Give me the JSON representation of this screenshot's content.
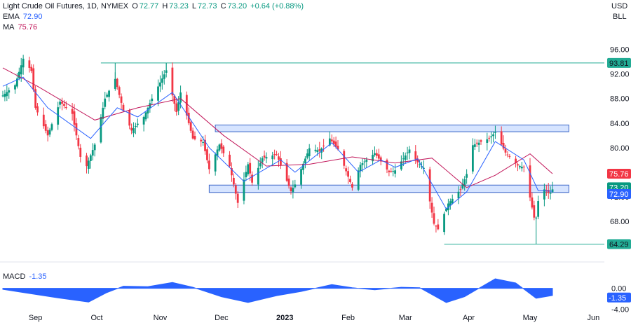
{
  "header": {
    "symbol": "Light Crude Oil Futures, 1D, NYMEX",
    "open_label": "O",
    "open": "72.77",
    "high_label": "H",
    "high": "73.23",
    "low_label": "L",
    "low": "72.73",
    "close_label": "C",
    "close": "73.20",
    "change": "+0.64 (+0.88%)",
    "ema_label": "EMA",
    "ema_value": "72.90",
    "ma_label": "MA",
    "ma_value": "75.76",
    "currency": "USD",
    "unit": "BLL"
  },
  "macd": {
    "label": "MACD",
    "value": "-1.35"
  },
  "colors": {
    "up": "#089981",
    "down": "#f23645",
    "ema": "#2962ff",
    "ma": "#c2185b",
    "level_line": "#22ab94",
    "zone_fill": "#d6e4ff",
    "zone_border": "#3b66c8",
    "macd_fill": "#2962ff",
    "axis_text": "#131722"
  },
  "chart_data": [
    {
      "type": "candlestick",
      "title": "Light Crude Oil Futures, 1D, NYMEX",
      "y_axis_ticks": [
        "96.00",
        "92.00",
        "88.00",
        "84.00",
        "80.00",
        "76.00",
        "72.00",
        "68.00"
      ],
      "y_axis_tick_values": [
        96,
        92,
        88,
        84,
        80,
        76,
        72,
        68
      ],
      "ylim": [
        63.2,
        99.5
      ],
      "x_axis_ticks": [
        "Sep",
        "Oct",
        "Nov",
        "Dec",
        "2023",
        "Feb",
        "Mar",
        "Apr",
        "May",
        "Jun"
      ],
      "x_range": [
        "2022-08-16",
        "2023-06-05"
      ],
      "price_labels": [
        {
          "text": "93.81",
          "value": 93.81,
          "role": "horizontal-level"
        },
        {
          "text": "75.76",
          "value": 75.76,
          "role": "ma"
        },
        {
          "text": "73.20",
          "value": 73.2,
          "role": "last-price"
        },
        {
          "text": "72.90",
          "value": 72.9,
          "role": "ema"
        },
        {
          "text": "64.29",
          "value": 64.29,
          "role": "horizontal-level"
        }
      ],
      "horizontal_levels": [
        {
          "value": 93.81,
          "start": "2022-10-03"
        },
        {
          "value": 64.29,
          "start": "2023-03-20"
        }
      ],
      "zones": [
        {
          "low": 82.6,
          "high": 83.7,
          "start": "2022-11-28",
          "end": "2023-05-20"
        },
        {
          "low": 72.7,
          "high": 73.9,
          "start": "2022-11-25",
          "end": "2023-05-20"
        }
      ],
      "anchors": [
        {
          "date": "2022-08-16",
          "price": 88.5
        },
        {
          "date": "2022-08-22",
          "price": 90.2
        },
        {
          "date": "2022-08-26",
          "price": 94.5
        },
        {
          "date": "2022-08-30",
          "price": 92.5
        },
        {
          "date": "2022-09-01",
          "price": 86.5
        },
        {
          "date": "2022-09-07",
          "price": 82.0
        },
        {
          "date": "2022-09-13",
          "price": 87.5
        },
        {
          "date": "2022-09-19",
          "price": 85.5
        },
        {
          "date": "2022-09-23",
          "price": 78.5
        },
        {
          "date": "2022-09-26",
          "price": 77.0
        },
        {
          "date": "2022-09-30",
          "price": 80.5
        },
        {
          "date": "2022-10-05",
          "price": 88.0
        },
        {
          "date": "2022-10-10",
          "price": 91.2
        },
        {
          "date": "2022-10-14",
          "price": 86.0
        },
        {
          "date": "2022-10-18",
          "price": 82.8
        },
        {
          "date": "2022-10-24",
          "price": 85.0
        },
        {
          "date": "2022-10-28",
          "price": 88.0
        },
        {
          "date": "2022-11-04",
          "price": 92.6
        },
        {
          "date": "2022-11-09",
          "price": 85.8
        },
        {
          "date": "2022-11-11",
          "price": 89.0
        },
        {
          "date": "2022-11-17",
          "price": 81.5
        },
        {
          "date": "2022-11-22",
          "price": 80.9
        },
        {
          "date": "2022-11-25",
          "price": 76.5
        },
        {
          "date": "2022-11-30",
          "price": 80.5
        },
        {
          "date": "2022-12-05",
          "price": 77.0
        },
        {
          "date": "2022-12-09",
          "price": 71.0
        },
        {
          "date": "2022-12-14",
          "price": 77.3
        },
        {
          "date": "2022-12-16",
          "price": 74.3
        },
        {
          "date": "2022-12-21",
          "price": 78.3
        },
        {
          "date": "2022-12-28",
          "price": 78.9
        },
        {
          "date": "2023-01-04",
          "price": 72.9
        },
        {
          "date": "2023-01-06",
          "price": 74.0
        },
        {
          "date": "2023-01-13",
          "price": 79.9
        },
        {
          "date": "2023-01-18",
          "price": 79.5
        },
        {
          "date": "2023-01-23",
          "price": 81.5
        },
        {
          "date": "2023-01-27",
          "price": 79.7
        },
        {
          "date": "2023-02-03",
          "price": 73.5
        },
        {
          "date": "2023-02-07",
          "price": 77.2
        },
        {
          "date": "2023-02-14",
          "price": 79.1
        },
        {
          "date": "2023-02-21",
          "price": 76.0
        },
        {
          "date": "2023-02-24",
          "price": 76.3
        },
        {
          "date": "2023-03-03",
          "price": 79.7
        },
        {
          "date": "2023-03-07",
          "price": 77.6
        },
        {
          "date": "2023-03-10",
          "price": 76.7
        },
        {
          "date": "2023-03-15",
          "price": 67.6
        },
        {
          "date": "2023-03-17",
          "price": 66.7
        },
        {
          "date": "2023-03-22",
          "price": 70.9
        },
        {
          "date": "2023-03-28",
          "price": 73.2
        },
        {
          "date": "2023-03-31",
          "price": 75.7
        },
        {
          "date": "2023-04-03",
          "price": 80.4
        },
        {
          "date": "2023-04-11",
          "price": 81.5
        },
        {
          "date": "2023-04-14",
          "price": 82.5
        },
        {
          "date": "2023-04-19",
          "price": 79.2
        },
        {
          "date": "2023-04-25",
          "price": 77.1
        },
        {
          "date": "2023-04-28",
          "price": 76.8
        },
        {
          "date": "2023-05-03",
          "price": 68.6
        },
        {
          "date": "2023-05-04",
          "price": 68.6
        },
        {
          "date": "2023-05-05",
          "price": 71.3
        },
        {
          "date": "2023-05-08",
          "price": 73.2
        },
        {
          "date": "2023-05-10",
          "price": 72.6
        },
        {
          "date": "2023-05-11",
          "price": 72.6
        },
        {
          "date": "2023-05-12",
          "price": 73.2
        }
      ],
      "ema_path": [
        {
          "date": "2022-08-16",
          "price": 90.0
        },
        {
          "date": "2022-08-26",
          "price": 91.5
        },
        {
          "date": "2022-09-07",
          "price": 86.5
        },
        {
          "date": "2022-09-28",
          "price": 81.5
        },
        {
          "date": "2022-10-11",
          "price": 86.5
        },
        {
          "date": "2022-10-21",
          "price": 85.0
        },
        {
          "date": "2022-11-07",
          "price": 89.0
        },
        {
          "date": "2022-11-25",
          "price": 80.0
        },
        {
          "date": "2022-12-12",
          "price": 74.5
        },
        {
          "date": "2022-12-30",
          "price": 78.0
        },
        {
          "date": "2023-01-06",
          "price": 76.0
        },
        {
          "date": "2023-01-24",
          "price": 80.8
        },
        {
          "date": "2023-02-06",
          "price": 76.0
        },
        {
          "date": "2023-02-17",
          "price": 78.0
        },
        {
          "date": "2023-02-24",
          "price": 76.8
        },
        {
          "date": "2023-03-07",
          "price": 78.2
        },
        {
          "date": "2023-03-21",
          "price": 70.0
        },
        {
          "date": "2023-03-31",
          "price": 72.8
        },
        {
          "date": "2023-04-14",
          "price": 81.0
        },
        {
          "date": "2023-04-28",
          "price": 78.0
        },
        {
          "date": "2023-05-05",
          "price": 73.0
        },
        {
          "date": "2023-05-12",
          "price": 72.9
        }
      ],
      "ma_path": [
        {
          "date": "2022-08-16",
          "price": 93.0
        },
        {
          "date": "2022-09-02",
          "price": 90.0
        },
        {
          "date": "2022-09-30",
          "price": 84.5
        },
        {
          "date": "2022-10-21",
          "price": 86.5
        },
        {
          "date": "2022-11-11",
          "price": 88.0
        },
        {
          "date": "2022-12-02",
          "price": 82.0
        },
        {
          "date": "2022-12-23",
          "price": 77.0
        },
        {
          "date": "2023-01-13",
          "price": 77.3
        },
        {
          "date": "2023-02-03",
          "price": 78.5
        },
        {
          "date": "2023-02-24",
          "price": 77.5
        },
        {
          "date": "2023-03-14",
          "price": 78.3
        },
        {
          "date": "2023-03-31",
          "price": 73.5
        },
        {
          "date": "2023-04-14",
          "price": 75.5
        },
        {
          "date": "2023-05-01",
          "price": 79.0
        },
        {
          "date": "2023-05-12",
          "price": 75.76
        }
      ]
    },
    {
      "type": "area",
      "title": "MACD",
      "y_axis_ticks": [
        "0.00",
        "-4.00"
      ],
      "y_axis_tick_values": [
        0,
        -4
      ],
      "ylim": [
        -4.3,
        2.2
      ],
      "last_value": -1.35,
      "last_value_label": "-1.35",
      "path": [
        {
          "date": "2022-08-16",
          "price": -0.2
        },
        {
          "date": "2022-08-26",
          "price": -0.8
        },
        {
          "date": "2022-09-12",
          "price": -1.8
        },
        {
          "date": "2022-09-27",
          "price": -2.6
        },
        {
          "date": "2022-10-06",
          "price": -0.8
        },
        {
          "date": "2022-10-14",
          "price": 0.4
        },
        {
          "date": "2022-10-26",
          "price": 0.3
        },
        {
          "date": "2022-11-07",
          "price": 1.1
        },
        {
          "date": "2022-11-17",
          "price": 0.2
        },
        {
          "date": "2022-12-01",
          "price": -1.6
        },
        {
          "date": "2022-12-14",
          "price": -2.7
        },
        {
          "date": "2022-12-28",
          "price": -1.4
        },
        {
          "date": "2023-01-09",
          "price": -0.6
        },
        {
          "date": "2023-01-24",
          "price": 0.7
        },
        {
          "date": "2023-02-03",
          "price": 0.1
        },
        {
          "date": "2023-02-14",
          "price": -0.3
        },
        {
          "date": "2023-02-27",
          "price": 0.2
        },
        {
          "date": "2023-03-08",
          "price": 0.1
        },
        {
          "date": "2023-03-21",
          "price": -2.7
        },
        {
          "date": "2023-03-30",
          "price": -1.6
        },
        {
          "date": "2023-04-06",
          "price": 0.0
        },
        {
          "date": "2023-04-14",
          "price": 1.8
        },
        {
          "date": "2023-04-24",
          "price": 1.0
        },
        {
          "date": "2023-05-04",
          "price": -1.9
        },
        {
          "date": "2023-05-12",
          "price": -1.35
        }
      ]
    }
  ]
}
